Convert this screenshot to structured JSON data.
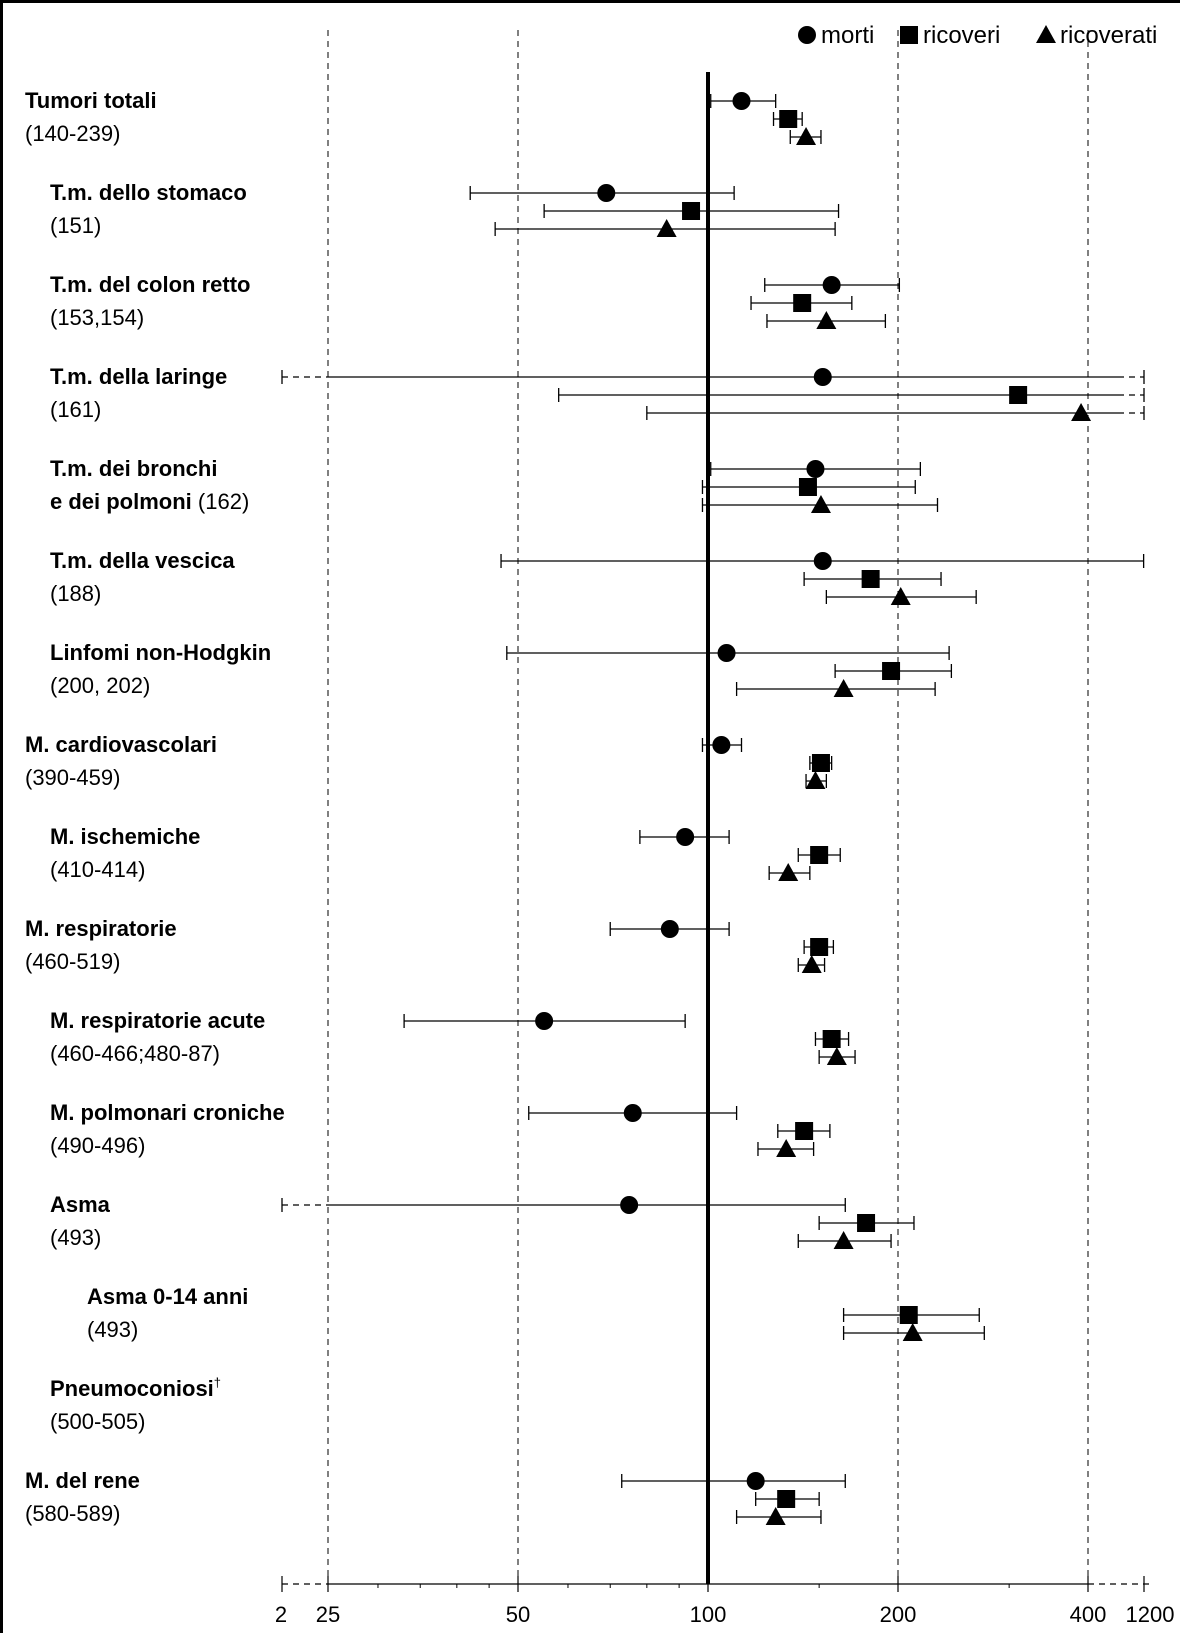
{
  "chart_data": {
    "type": "scatter",
    "x_scale": "log",
    "title": "",
    "xlabel": "",
    "ylabel": "",
    "reference_value": 100,
    "xlim": [
      25,
      400
    ],
    "x_ticks_major": [
      "2",
      "25",
      "50",
      "100",
      "200",
      "400",
      "1200"
    ],
    "grid": "dashed vertical lines at 25, 50, 200, 400",
    "legend_position": "top-right",
    "series": [
      {
        "name": "morti",
        "marker": "circle"
      },
      {
        "name": "ricoveri",
        "marker": "square"
      },
      {
        "name": "ricoverati",
        "marker": "triangle"
      }
    ],
    "groups": [
      {
        "title": "Tumori totali",
        "code": "(140-239)",
        "indent": 0,
        "points": [
          {
            "series": "morti",
            "value": 113,
            "lo": 101,
            "hi": 128
          },
          {
            "series": "ricoveri",
            "value": 134,
            "lo": 127,
            "hi": 141
          },
          {
            "series": "ricoverati",
            "value": 143,
            "lo": 135,
            "hi": 151
          }
        ]
      },
      {
        "title": "T.m. dello stomaco",
        "code": "(151)",
        "indent": 1,
        "points": [
          {
            "series": "morti",
            "value": 69,
            "lo": 42,
            "hi": 110
          },
          {
            "series": "ricoveri",
            "value": 94,
            "lo": 55,
            "hi": 161
          },
          {
            "series": "ricoverati",
            "value": 86,
            "lo": 46,
            "hi": 159
          }
        ]
      },
      {
        "title": "T.m. del colon retto",
        "code": "(153,154)",
        "indent": 1,
        "points": [
          {
            "series": "morti",
            "value": 157,
            "lo": 123,
            "hi": 201
          },
          {
            "series": "ricoveri",
            "value": 141,
            "lo": 117,
            "hi": 169
          },
          {
            "series": "ricoverati",
            "value": 154,
            "lo": 124,
            "hi": 191
          }
        ]
      },
      {
        "title": "T.m. della laringe",
        "code": "(161)",
        "indent": 1,
        "points": [
          {
            "series": "morti",
            "value": 152,
            "lo": 2,
            "hi": 1200
          },
          {
            "series": "ricoveri",
            "value": 310,
            "lo": 58,
            "hi": 1200
          },
          {
            "series": "ricoverati",
            "value": 390,
            "lo": 80,
            "hi": 1200
          }
        ]
      },
      {
        "title": "T.m. dei bronchi",
        "title2": "e dei polmoni",
        "code": "(162)",
        "indent": 1,
        "points": [
          {
            "series": "morti",
            "value": 148,
            "lo": 101,
            "hi": 217
          },
          {
            "series": "ricoveri",
            "value": 144,
            "lo": 98,
            "hi": 213
          },
          {
            "series": "ricoverati",
            "value": 151,
            "lo": 98,
            "hi": 231
          }
        ]
      },
      {
        "title": "T.m. della vescica",
        "code": "(188)",
        "indent": 1,
        "points": [
          {
            "series": "morti",
            "value": 152,
            "lo": 47,
            "hi": 490
          },
          {
            "series": "ricoveri",
            "value": 181,
            "lo": 142,
            "hi": 234
          },
          {
            "series": "ricoverati",
            "value": 202,
            "lo": 154,
            "hi": 266
          }
        ]
      },
      {
        "title": "Linfomi non-Hodgkin",
        "code": "(200, 202)",
        "indent": 1,
        "points": [
          {
            "series": "morti",
            "value": 107,
            "lo": 48,
            "hi": 241
          },
          {
            "series": "ricoveri",
            "value": 195,
            "lo": 159,
            "hi": 243
          },
          {
            "series": "ricoverati",
            "value": 164,
            "lo": 111,
            "hi": 229
          }
        ]
      },
      {
        "title": "M. cardiovascolari",
        "code": "(390-459)",
        "indent": 0,
        "points": [
          {
            "series": "morti",
            "value": 105,
            "lo": 98,
            "hi": 113
          },
          {
            "series": "ricoveri",
            "value": 151,
            "lo": 145,
            "hi": 157
          },
          {
            "series": "ricoverati",
            "value": 148,
            "lo": 143,
            "hi": 154
          }
        ]
      },
      {
        "title": "M. ischemiche",
        "code": "(410-414)",
        "indent": 1,
        "points": [
          {
            "series": "morti",
            "value": 92,
            "lo": 78,
            "hi": 108
          },
          {
            "series": "ricoveri",
            "value": 150,
            "lo": 139,
            "hi": 162
          },
          {
            "series": "ricoverati",
            "value": 134,
            "lo": 125,
            "hi": 145
          }
        ]
      },
      {
        "title": "M. respiratorie",
        "code": "(460-519)",
        "indent": 0,
        "points": [
          {
            "series": "morti",
            "value": 87,
            "lo": 70,
            "hi": 108
          },
          {
            "series": "ricoveri",
            "value": 150,
            "lo": 142,
            "hi": 158
          },
          {
            "series": "ricoverati",
            "value": 146,
            "lo": 139,
            "hi": 153
          }
        ]
      },
      {
        "title": "M. respiratorie acute",
        "code": "(460-466;480-87)",
        "indent": 1,
        "points": [
          {
            "series": "morti",
            "value": 55,
            "lo": 33,
            "hi": 92
          },
          {
            "series": "ricoveri",
            "value": 157,
            "lo": 148,
            "hi": 167
          },
          {
            "series": "ricoverati",
            "value": 160,
            "lo": 150,
            "hi": 171
          }
        ]
      },
      {
        "title": "M. polmonari croniche",
        "code": "(490-496)",
        "indent": 1,
        "points": [
          {
            "series": "morti",
            "value": 76,
            "lo": 52,
            "hi": 111
          },
          {
            "series": "ricoveri",
            "value": 142,
            "lo": 129,
            "hi": 156
          },
          {
            "series": "ricoverati",
            "value": 133,
            "lo": 120,
            "hi": 147
          }
        ]
      },
      {
        "title": "Asma",
        "code": "(493)",
        "indent": 1,
        "points": [
          {
            "series": "morti",
            "value": 75,
            "lo": 2,
            "hi": 165
          },
          {
            "series": "ricoveri",
            "value": 178,
            "lo": 150,
            "hi": 212
          },
          {
            "series": "ricoverati",
            "value": 164,
            "lo": 139,
            "hi": 195
          }
        ]
      },
      {
        "title": "Asma 0-14 anni",
        "code": "(493)",
        "indent": 2,
        "points": [
          {
            "series": "ricoveri",
            "value": 208,
            "lo": 164,
            "hi": 269
          },
          {
            "series": "ricoverati",
            "value": 211,
            "lo": 164,
            "hi": 274
          }
        ]
      },
      {
        "title": "Pneumoconiosi",
        "sup": "†",
        "code": "(500-505)",
        "indent": 1,
        "points": []
      },
      {
        "title": "M. del rene",
        "code": "(580-589)",
        "indent": 0,
        "points": [
          {
            "series": "morti",
            "value": 119,
            "lo": 73,
            "hi": 165
          },
          {
            "series": "ricoveri",
            "value": 133,
            "lo": 119,
            "hi": 150
          },
          {
            "series": "ricoverati",
            "value": 128,
            "lo": 111,
            "hi": 151
          }
        ]
      }
    ]
  }
}
